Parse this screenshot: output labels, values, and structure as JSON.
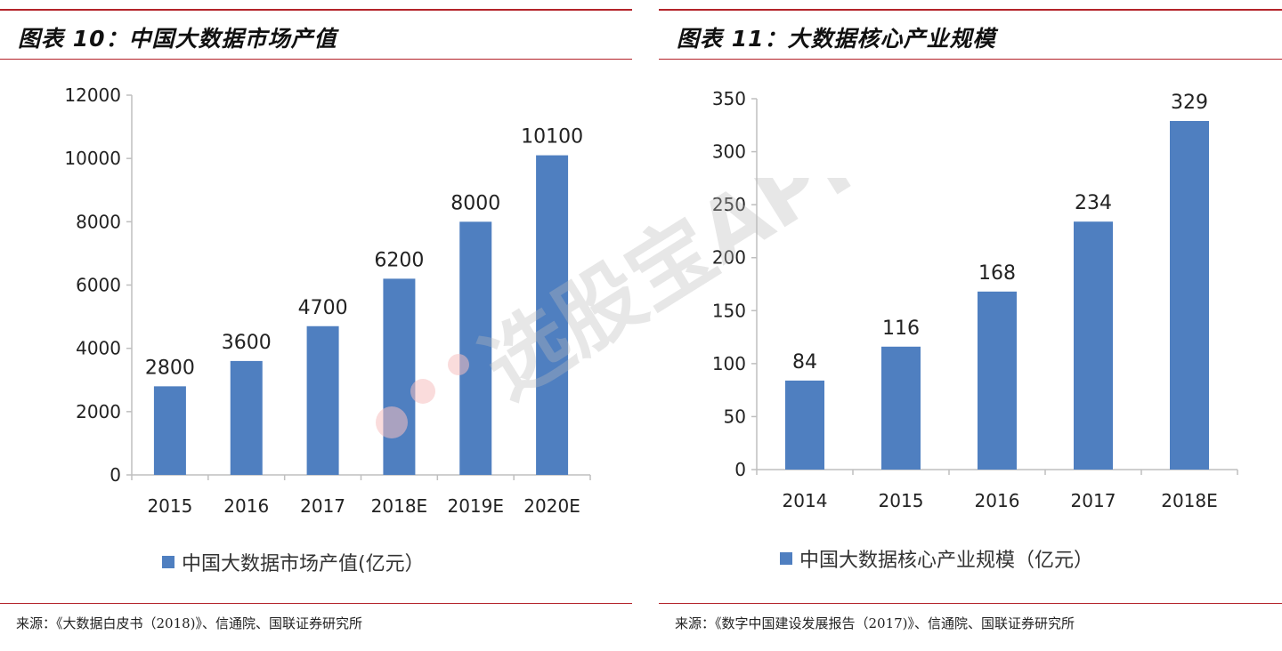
{
  "colors": {
    "bar": "#4f7fc0",
    "rule": "#b4232a",
    "axis": "#bfbfbf"
  },
  "watermark": {
    "text": "选股宝APP",
    "logo": "dots-logo-icon"
  },
  "left": {
    "title": "图表 10：中国大数据市场产值",
    "legend": "中国大数据市场产值(亿元）",
    "source": "来源：《大数据白皮书（2018)》、信通院、国联证券研究所"
  },
  "right": {
    "title": "图表 11：大数据核心产业规模",
    "legend": "中国大数据核心产业规模（亿元）",
    "source": "来源：《数字中国建设发展报告（2017)》、信通院、国联证券研究所"
  },
  "chart_data": [
    {
      "type": "bar",
      "title": "图表 10：中国大数据市场产值",
      "categories": [
        "2015",
        "2016",
        "2017",
        "2018E",
        "2019E",
        "2020E"
      ],
      "series": [
        {
          "name": "中国大数据市场产值(亿元）",
          "values": [
            2800,
            3600,
            4700,
            6200,
            8000,
            10100
          ]
        }
      ],
      "data_labels": [
        "2800",
        "3600",
        "4700",
        "6200",
        "8000",
        "10100"
      ],
      "ylim": [
        0,
        12000
      ],
      "yticks": [
        0,
        2000,
        4000,
        6000,
        8000,
        10000,
        12000
      ],
      "xlabel": "",
      "ylabel": "",
      "grid": false,
      "legend": "bottom"
    },
    {
      "type": "bar",
      "title": "图表 11：大数据核心产业规模",
      "categories": [
        "2014",
        "2015",
        "2016",
        "2017",
        "2018E"
      ],
      "series": [
        {
          "name": "中国大数据核心产业规模（亿元）",
          "values": [
            84,
            116,
            168,
            234,
            329
          ]
        }
      ],
      "data_labels": [
        "84",
        "116",
        "168",
        "234",
        "329"
      ],
      "ylim": [
        0,
        350
      ],
      "yticks": [
        0,
        50,
        100,
        150,
        200,
        250,
        300,
        350
      ],
      "xlabel": "",
      "ylabel": "",
      "grid": false,
      "legend": "bottom"
    }
  ]
}
